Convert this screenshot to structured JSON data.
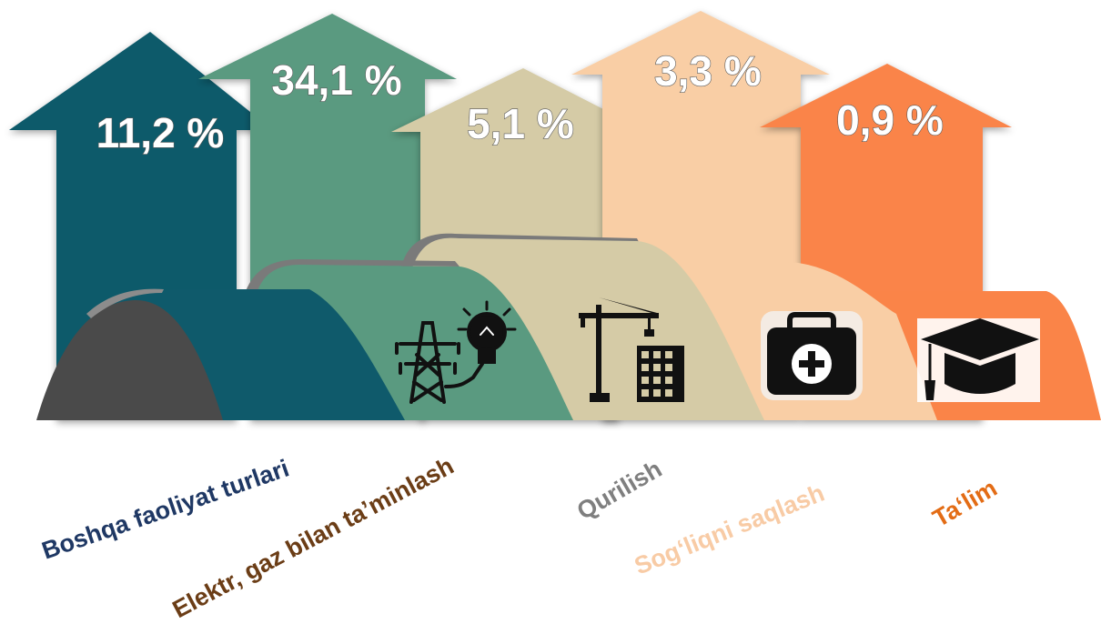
{
  "chart_data": {
    "type": "bar",
    "unit": "%",
    "categories": [
      "Boshqa faoliyat turlari",
      "Elektr, gaz bilan ta’minlash",
      "Qurilish",
      "Sog‘liqni saqlash",
      "Ta‘lim"
    ],
    "values": [
      11.2,
      34.1,
      5.1,
      3.3,
      0.9
    ],
    "value_labels": [
      "11,2 %",
      "34,1 %",
      "5,1 %",
      "3,3 %",
      "0,9 %"
    ],
    "colors": [
      "#0f5a6b",
      "#5a9a80",
      "#d5cba6",
      "#f9cea5",
      "#fa8448"
    ],
    "label_colors": [
      "#1f3864",
      "#6b3d16",
      "#7f7f7f",
      "#f8cba5",
      "#e36c15"
    ],
    "icons": [
      "",
      "power-tower-bulb-icon",
      "crane-building-icon",
      "medical-kit-icon",
      "graduation-cap-icon"
    ]
  }
}
